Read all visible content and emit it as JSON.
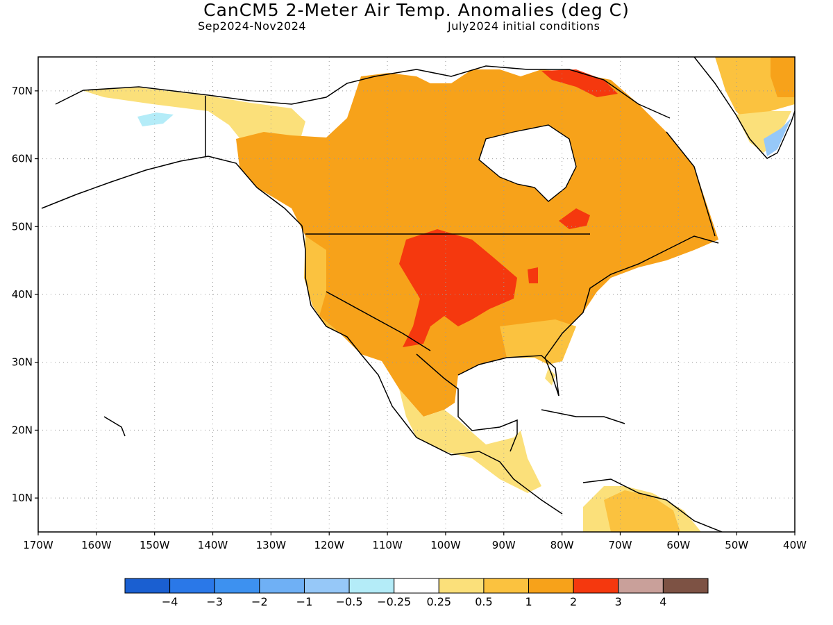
{
  "header": {
    "title": "CanCM5 2-Meter Air Temp. Anomalies (deg C)",
    "period": "Sep2024-Nov2024",
    "init": "July2024 initial conditions"
  },
  "map": {
    "lon_ticks": [
      "170W",
      "160W",
      "150W",
      "140W",
      "130W",
      "120W",
      "110W",
      "100W",
      "90W",
      "80W",
      "70W",
      "60W",
      "50W",
      "40W"
    ],
    "lat_ticks": [
      "70N",
      "60N",
      "50N",
      "40N",
      "30N",
      "20N",
      "10N"
    ],
    "grid": true
  },
  "colorbar": {
    "colors": [
      "#1a5fd1",
      "#2a78e8",
      "#3d91f0",
      "#6fb0f5",
      "#96c8f8",
      "#b4ecf8",
      "#ffffff",
      "#fbe07a",
      "#fbc23f",
      "#f7a21a",
      "#f5380e",
      "#c9a09a",
      "#7d5244"
    ],
    "labels": [
      "−4",
      "−3",
      "−2",
      "−1",
      "−0.5",
      "−0.25",
      "0.25",
      "0.5",
      "1",
      "2",
      "3",
      "4"
    ]
  }
}
